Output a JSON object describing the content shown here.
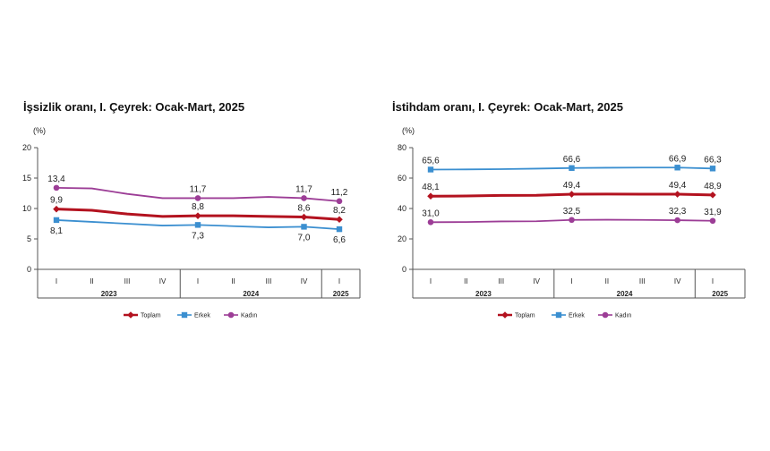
{
  "chart_data": [
    {
      "type": "line",
      "title": "İşsizlik oranı, I. Çeyrek: Ocak-Mart, 2025",
      "unit": "(%)",
      "ylim": [
        0,
        20
      ],
      "yticks": [
        "0",
        "5",
        "10",
        "15",
        "20"
      ],
      "yticks_values": [
        0,
        5,
        10,
        15,
        20
      ],
      "categories": [
        "I",
        "II",
        "III",
        "IV",
        "I",
        "II",
        "III",
        "IV",
        "I"
      ],
      "groups": [
        {
          "label": "2023",
          "start": 0,
          "end": 3
        },
        {
          "label": "2024",
          "start": 4,
          "end": 7
        },
        {
          "label": "2025",
          "start": 8,
          "end": 8
        }
      ],
      "series": [
        {
          "name": "Toplam",
          "color": "#b3121f",
          "marker": "diamond",
          "values": [
            9.9,
            9.7,
            9.1,
            8.7,
            8.8,
            8.8,
            8.7,
            8.6,
            8.2
          ],
          "labels": [
            {
              "index": 0,
              "text": "9,9",
              "pos": "above"
            },
            {
              "index": 4,
              "text": "8,8",
              "pos": "above"
            },
            {
              "index": 7,
              "text": "8,6",
              "pos": "above"
            },
            {
              "index": 8,
              "text": "8,2",
              "pos": "above"
            }
          ]
        },
        {
          "name": "Erkek",
          "color": "#3b8fd0",
          "marker": "square",
          "values": [
            8.1,
            7.8,
            7.5,
            7.2,
            7.3,
            7.1,
            6.9,
            7.0,
            6.6
          ],
          "labels": [
            {
              "index": 0,
              "text": "8,1",
              "pos": "below"
            },
            {
              "index": 4,
              "text": "7,3",
              "pos": "below"
            },
            {
              "index": 7,
              "text": "7,0",
              "pos": "below"
            },
            {
              "index": 8,
              "text": "6,6",
              "pos": "below"
            }
          ]
        },
        {
          "name": "Kadın",
          "color": "#9c3d96",
          "marker": "circle",
          "values": [
            13.4,
            13.3,
            12.4,
            11.7,
            11.7,
            11.7,
            11.9,
            11.7,
            11.2
          ],
          "labels": [
            {
              "index": 0,
              "text": "13,4",
              "pos": "above"
            },
            {
              "index": 4,
              "text": "11,7",
              "pos": "above"
            },
            {
              "index": 7,
              "text": "11,7",
              "pos": "above"
            },
            {
              "index": 8,
              "text": "11,2",
              "pos": "above"
            }
          ]
        }
      ],
      "legend": [
        "Toplam",
        "Erkek",
        "Kadın"
      ]
    },
    {
      "type": "line",
      "title": "İstihdam oranı, I. Çeyrek: Ocak-Mart, 2025",
      "unit": "(%)",
      "ylim": [
        0,
        80
      ],
      "yticks": [
        "0",
        "20",
        "40",
        "60",
        "80"
      ],
      "yticks_values": [
        0,
        20,
        40,
        60,
        80
      ],
      "categories": [
        "I",
        "II",
        "III",
        "IV",
        "I",
        "II",
        "III",
        "IV",
        "I"
      ],
      "groups": [
        {
          "label": "2023",
          "start": 0,
          "end": 3
        },
        {
          "label": "2024",
          "start": 4,
          "end": 7
        },
        {
          "label": "2025",
          "start": 8,
          "end": 8
        }
      ],
      "series": [
        {
          "name": "Toplam",
          "color": "#b3121f",
          "marker": "diamond",
          "values": [
            48.1,
            48.2,
            48.6,
            48.7,
            49.4,
            49.5,
            49.4,
            49.4,
            48.9
          ],
          "labels": [
            {
              "index": 0,
              "text": "48,1",
              "pos": "above"
            },
            {
              "index": 4,
              "text": "49,4",
              "pos": "above"
            },
            {
              "index": 7,
              "text": "49,4",
              "pos": "above"
            },
            {
              "index": 8,
              "text": "48,9",
              "pos": "above"
            }
          ]
        },
        {
          "name": "Erkek",
          "color": "#3b8fd0",
          "marker": "square",
          "values": [
            65.6,
            65.7,
            65.9,
            66.2,
            66.6,
            66.8,
            66.9,
            66.9,
            66.3
          ],
          "labels": [
            {
              "index": 0,
              "text": "65,6",
              "pos": "above"
            },
            {
              "index": 4,
              "text": "66,6",
              "pos": "above"
            },
            {
              "index": 7,
              "text": "66,9",
              "pos": "above"
            },
            {
              "index": 8,
              "text": "66,3",
              "pos": "above"
            }
          ]
        },
        {
          "name": "Kadın",
          "color": "#9c3d96",
          "marker": "circle",
          "values": [
            31.0,
            31.1,
            31.5,
            31.6,
            32.5,
            32.6,
            32.5,
            32.3,
            31.9
          ],
          "labels": [
            {
              "index": 0,
              "text": "31,0",
              "pos": "above"
            },
            {
              "index": 4,
              "text": "32,5",
              "pos": "above"
            },
            {
              "index": 7,
              "text": "32,3",
              "pos": "above"
            },
            {
              "index": 8,
              "text": "31,9",
              "pos": "above"
            }
          ]
        }
      ],
      "legend": [
        "Toplam",
        "Erkek",
        "Kadın"
      ]
    }
  ]
}
